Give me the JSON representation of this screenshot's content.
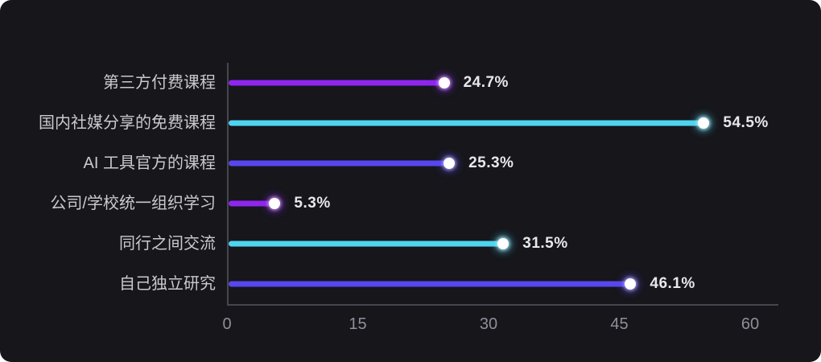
{
  "page": {
    "background": "#ffffff",
    "card_background": "#16161b"
  },
  "chart_data": {
    "type": "bar",
    "variant": "lollipop",
    "orientation": "horizontal",
    "title": "",
    "categories": [
      "第三方付费课程",
      "国内社媒分享的免费课程",
      "AI 工具官方的课程",
      "公司/学校统一组织学习",
      "同行之间交流",
      "自己独立研究"
    ],
    "values": [
      24.7,
      54.5,
      25.3,
      5.3,
      31.5,
      46.1
    ],
    "value_labels": [
      "24.7%",
      "54.5%",
      "25.3%",
      "5.3%",
      "31.5%",
      "46.1%"
    ],
    "bar_colors": [
      "#8e26ef",
      "#4fd4f0",
      "#5847ee",
      "#8e26ef",
      "#4fd4f0",
      "#5847ee"
    ],
    "dot_color": "#ffffff",
    "x_ticks": [
      0,
      15,
      30,
      45,
      60
    ],
    "x_tick_labels": [
      "0",
      "15",
      "30",
      "45",
      "60"
    ],
    "xlim": [
      0,
      63.2
    ],
    "axis_color": "#46464e",
    "category_label_color": "#c9c9ce",
    "tick_label_color": "#8f8f96",
    "value_label_color": "#e7e7ec",
    "grid": false,
    "legend": false
  }
}
